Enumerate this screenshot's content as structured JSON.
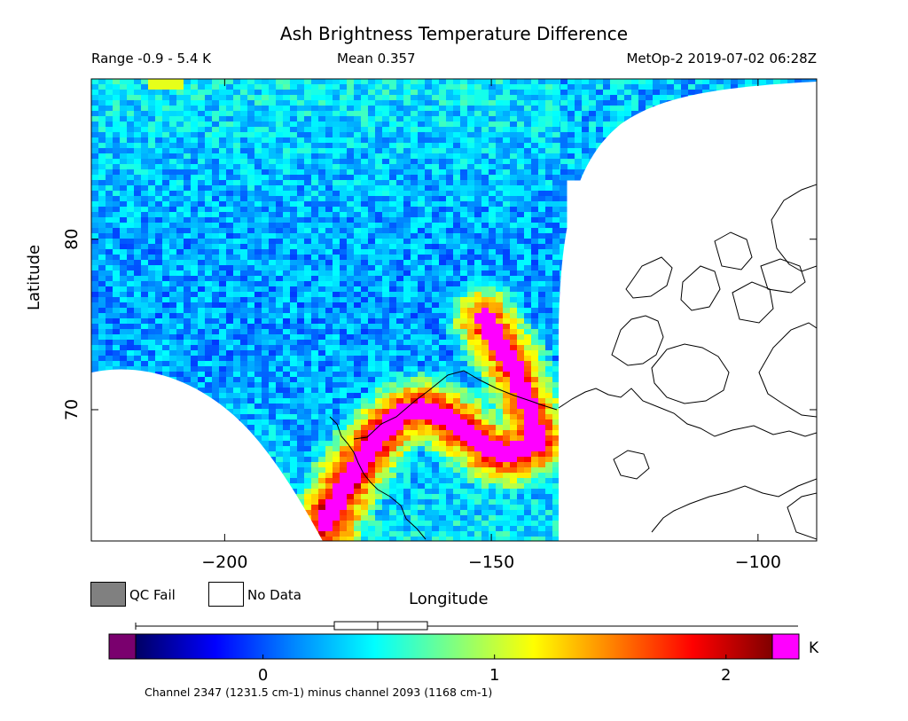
{
  "chart_data": {
    "type": "heatmap",
    "title": "Ash Brightness Temperature Difference",
    "stats": {
      "range": "Range -0.9 - 5.4 K",
      "mean": "Mean 0.357",
      "satellite_time": "MetOp-2 2019-07-02 06:28Z"
    },
    "xlabel": "Longitude",
    "ylabel": "Latitude",
    "xlim": [
      -225,
      -89
    ],
    "ylim": [
      62.3,
      89.4
    ],
    "x_ticks": [
      -200,
      -150,
      -100
    ],
    "y_ticks": [
      70,
      80
    ],
    "colorbar": {
      "unit": "K",
      "ticks": [
        0,
        1,
        2
      ],
      "vmin": -0.55,
      "vmax": 2.2,
      "low_color": "#7a006e",
      "high_color": "#ff00ff",
      "gradient": [
        "#000064",
        "#0000ff",
        "#0088ff",
        "#00ffff",
        "#80ff80",
        "#ffff00",
        "#ff8000",
        "#ff0000",
        "#800000"
      ],
      "caption": "Channel 2347 (1231.5 cm-1) minus channel 2093 (1168 cm-1)"
    },
    "legend": [
      {
        "label": "QC Fail",
        "color": "#808080"
      },
      {
        "label": "No Data",
        "color": "#ffffff"
      }
    ],
    "ash_plume_path": [
      [
        -181.5,
        63.6
      ],
      [
        -178,
        65.8
      ],
      [
        -174.5,
        67.5
      ],
      [
        -171,
        68.9
      ],
      [
        -167.5,
        69.9
      ],
      [
        -163.5,
        70.2
      ],
      [
        -159.5,
        69.7
      ],
      [
        -155.5,
        68.9
      ],
      [
        -151.5,
        68.0
      ],
      [
        -148,
        67.6
      ],
      [
        -145,
        67.8
      ],
      [
        -142,
        68.2
      ]
    ],
    "ash_plume_branch": [
      [
        -152,
        75.5
      ],
      [
        -149.5,
        74.2
      ],
      [
        -147,
        73.0
      ],
      [
        -145.5,
        71.8
      ],
      [
        -144,
        70.6
      ],
      [
        -143,
        69.6
      ],
      [
        -142.5,
        68.6
      ]
    ]
  }
}
